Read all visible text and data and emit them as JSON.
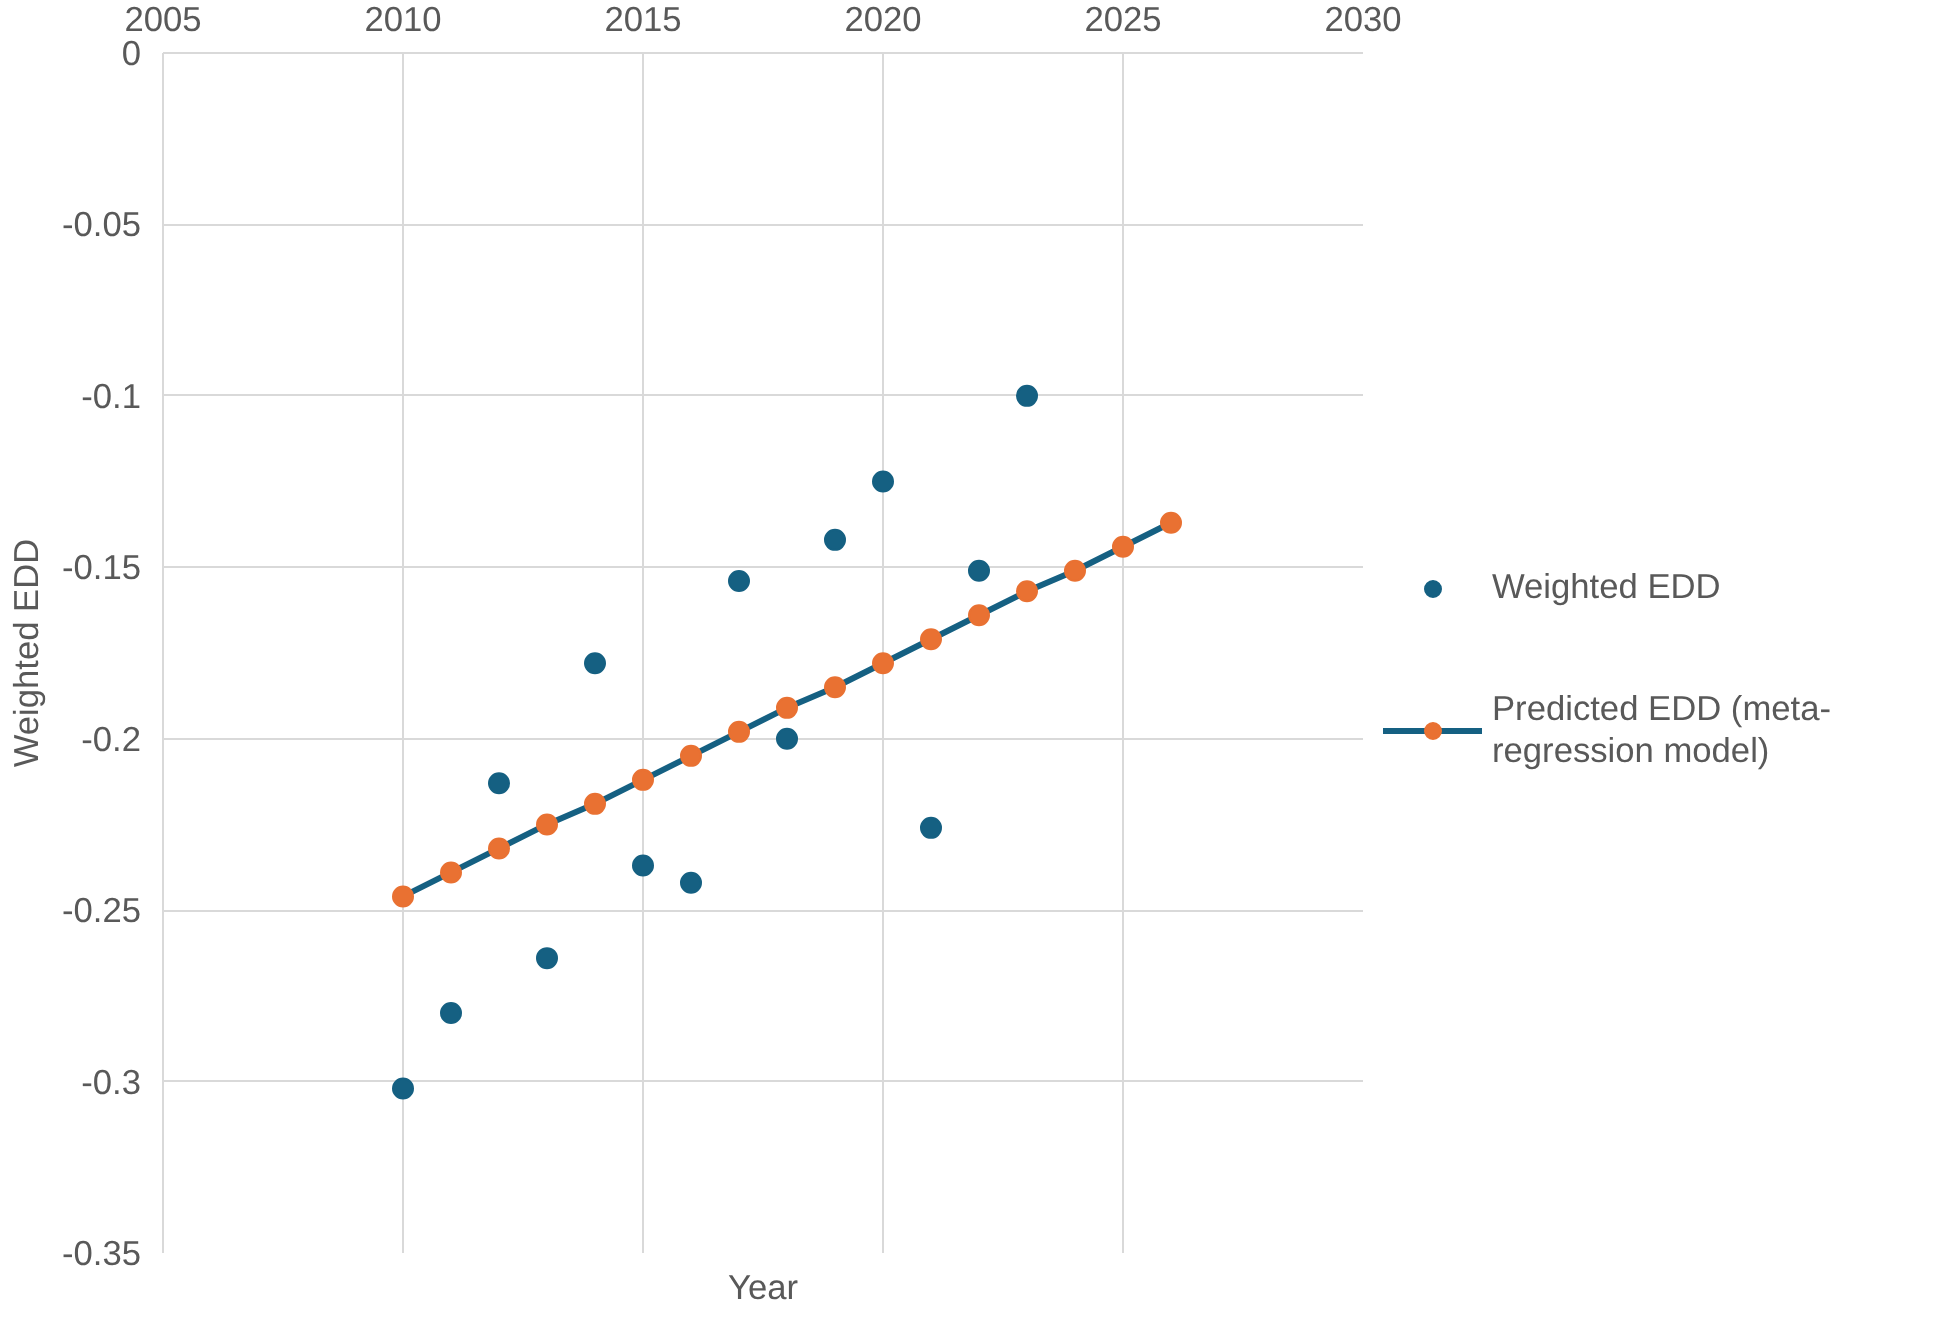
{
  "chart_data": {
    "type": "scatter",
    "xlabel": "Year",
    "ylabel": "Weighted EDD",
    "xlim": [
      2005,
      2030
    ],
    "xticks": [
      2005,
      2010,
      2015,
      2020,
      2025,
      2030
    ],
    "ylim": [
      -0.35,
      0
    ],
    "yticks": [
      -0.35,
      -0.3,
      -0.25,
      -0.2,
      -0.15,
      -0.1,
      -0.05,
      0
    ],
    "grid": true,
    "legend": "right",
    "marker": "circle",
    "series": [
      {
        "name": "Weighted EDD",
        "color": "#156082",
        "x": [
          2010,
          2011,
          2012,
          2013,
          2014,
          2015,
          2016,
          2017,
          2018,
          2019,
          2020,
          2021,
          2022,
          2023
        ],
        "values": [
          -0.302,
          -0.28,
          -0.213,
          -0.264,
          -0.178,
          -0.237,
          -0.242,
          -0.154,
          -0.2,
          -0.142,
          -0.125,
          -0.226,
          -0.151,
          -0.1
        ]
      },
      {
        "name": "Predicted EDD (meta-regression model)",
        "type": "line",
        "color": "#156082",
        "colors": [
          "#e97132",
          "#e97132",
          "#e97132",
          "#e97132",
          "#e97132",
          "#e97132",
          "#e97132",
          "#e97132",
          "#e97132",
          "#e97132",
          "#e97132",
          "#e97132",
          "#e97132",
          "#e97132",
          "#e97132",
          "#e97132",
          "#e97132"
        ],
        "x": [
          2010,
          2011,
          2012,
          2013,
          2014,
          2015,
          2016,
          2017,
          2018,
          2019,
          2020,
          2021,
          2022,
          2023,
          2024,
          2025,
          2026
        ],
        "values": [
          -0.246,
          -0.239,
          -0.232,
          -0.225,
          -0.219,
          -0.212,
          -0.205,
          -0.198,
          -0.191,
          -0.185,
          -0.178,
          -0.171,
          -0.164,
          -0.157,
          -0.151,
          -0.144,
          -0.137
        ]
      }
    ]
  }
}
